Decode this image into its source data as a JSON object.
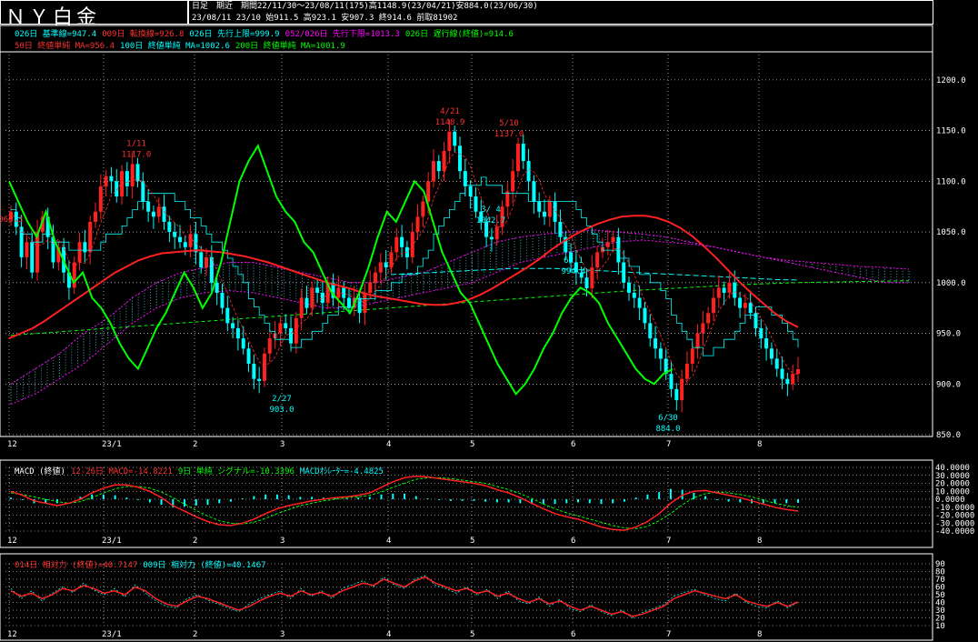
{
  "header": {
    "title": "ＮＹ白金",
    "line1": "日足　期近　期間22/11/30～23/08/11(175)高1148.9(23/04/21)安884.0(23/06/30)",
    "line2": "23/08/11 23/10 始911.5 高923.1 安907.3 終914.6 前取81902"
  },
  "legends": {
    "main1": [
      {
        "text": "026日 基準線=947.4",
        "color": "#00ffff"
      },
      {
        "text": "009日 転換線=926.8",
        "color": "#ff3030"
      },
      {
        "text": "026日 先行上限=999.9",
        "color": "#00ffff"
      },
      {
        "text": "052/026日 先行下限=1013.3",
        "color": "#ff00ff"
      },
      {
        "text": "026日 遅行線(終値)=914.6",
        "color": "#00ff00"
      }
    ],
    "main2": [
      {
        "text": "50日 終値単純 MA=956.4",
        "color": "#ff3030"
      },
      {
        "text": "100日 終値単純 MA=1002.6",
        "color": "#00ffff"
      },
      {
        "text": "200日 終値単純 MA=1001.9",
        "color": "#00ff00"
      }
    ],
    "macd": [
      {
        "text": "MACD (終値)",
        "color": "#ffffff"
      },
      {
        "text": "12-26日 MACD=-14.8221",
        "color": "#ff3030"
      },
      {
        "text": "9日 単純 シグナル=-10.3396",
        "color": "#00ff00"
      },
      {
        "text": "MACDｵｼﾚｰﾀｰ=-4.4825",
        "color": "#00ffff"
      }
    ],
    "rsi": [
      {
        "text": "014日 相対力 (終値)=40.7147",
        "color": "#ff3030"
      },
      {
        "text": "009日 相対力 (終値)=40.1467",
        "color": "#00ffff"
      }
    ]
  },
  "colors": {
    "up": "#ff2020",
    "down": "#00ffff",
    "grid": "#ffffff",
    "ma50": "#ff2020",
    "ma100": "#00ffff",
    "ma200": "#00ff00",
    "kumo_upper": "#00ffff",
    "kumo_lower": "#ff00ff",
    "chikou": "#00ff00",
    "base": "#00ffff",
    "conv": "#ff3030"
  },
  "chart_data": [
    {
      "type": "line",
      "title": "ＮＹ白金",
      "x_ticks": [
        "12",
        "23/1",
        "2",
        "3",
        "4",
        "5",
        "6",
        "7",
        "8"
      ],
      "ylim": [
        850,
        1225
      ],
      "y_ticks": [
        "1200.0",
        "1150.0",
        "1100.0",
        "1050.0",
        "1000.0",
        "950.0",
        "900.0",
        "850.0"
      ],
      "annotations": [
        {
          "text": "1/11",
          "value": 1117.0,
          "color": "#ff3030"
        },
        {
          "text": "1117.0",
          "value": 1117.0,
          "color": "#ff3030"
        },
        {
          "text": "4/21",
          "value": 1148.9,
          "color": "#ff3030"
        },
        {
          "text": "1148.9",
          "value": 1148.9,
          "color": "#ff3030"
        },
        {
          "text": "5/10",
          "value": 1137.0,
          "color": "#ff3030"
        },
        {
          "text": "1137.0",
          "value": 1137.0,
          "color": "#ff3030"
        },
        {
          "text": "2/27",
          "value": 903.0,
          "color": "#00ffff"
        },
        {
          "text": "903.0",
          "value": 903.0,
          "color": "#00ffff"
        },
        {
          "text": "6/30",
          "value": 884.0,
          "color": "#00ffff"
        },
        {
          "text": "884.0",
          "value": 884.0,
          "color": "#00ffff"
        },
        {
          "text": "3/ 4",
          "value": 1042.7,
          "color": "#00ffff"
        },
        {
          "text": "1042.7",
          "value": 1042.7,
          "color": "#00ffff"
        },
        {
          "text": "6/ 1",
          "value": 994.4,
          "color": "#00ffff"
        },
        {
          "text": "994.4",
          "value": 994.4,
          "color": "#00ffff"
        }
      ],
      "close": [
        1070,
        1055,
        1025,
        1040,
        1010,
        1050,
        1065,
        1045,
        1020,
        1035,
        1010,
        995,
        1020,
        1040,
        1030,
        1060,
        1070,
        1095,
        1105,
        1100,
        1085,
        1110,
        1095,
        1117,
        1100,
        1080,
        1070,
        1065,
        1075,
        1060,
        1050,
        1045,
        1040,
        1035,
        1048,
        1030,
        1015,
        1025,
        1000,
        990,
        975,
        960,
        955,
        945,
        935,
        920,
        905,
        903,
        930,
        945,
        950,
        960,
        955,
        940,
        965,
        985,
        975,
        995,
        990,
        980,
        1000,
        985,
        995,
        985,
        975,
        985,
        970,
        990,
        1000,
        1010,
        1020,
        1015,
        1030,
        1045,
        1035,
        1025,
        1050,
        1065,
        1080,
        1100,
        1120,
        1110,
        1130,
        1148.9,
        1135,
        1110,
        1095,
        1085,
        1070,
        1060,
        1045,
        1042.7,
        1055,
        1075,
        1090,
        1110,
        1137,
        1120,
        1100,
        1080,
        1070,
        1065,
        1080,
        1060,
        1045,
        1030,
        1020,
        1010,
        1005,
        994.4,
        1015,
        1030,
        1035,
        1040,
        1045,
        1020,
        1000,
        990,
        985,
        975,
        960,
        945,
        935,
        925,
        910,
        895,
        884,
        905,
        920,
        935,
        950,
        960,
        970,
        985,
        995,
        990,
        1000,
        985,
        975,
        980,
        970,
        955,
        945,
        935,
        925,
        915,
        905,
        900,
        910,
        914.6
      ],
      "ma50": [
        945,
        950,
        955,
        962,
        970,
        978,
        986,
        994,
        1002,
        1010,
        1016,
        1022,
        1026,
        1029,
        1030,
        1031,
        1032,
        1031,
        1030,
        1028,
        1026,
        1023,
        1020,
        1016,
        1012,
        1008,
        1004,
        1000,
        997,
        994,
        990,
        987,
        985,
        983,
        981,
        979,
        978,
        978,
        980,
        983,
        988,
        994,
        1001,
        1008,
        1015,
        1023,
        1032,
        1040,
        1047,
        1053,
        1058,
        1062,
        1065,
        1066,
        1066,
        1064,
        1060,
        1054,
        1046,
        1036,
        1025,
        1013,
        1001,
        990,
        980,
        970,
        962,
        956
      ],
      "ma100": [
        1008,
        1009,
        1010,
        1011,
        1012,
        1013,
        1014,
        1014,
        1014,
        1013,
        1012,
        1011,
        1010,
        1009,
        1008,
        1007,
        1006,
        1005,
        1004,
        1003,
        1002.6
      ],
      "ma200": [
        948,
        952,
        956,
        960,
        964,
        968,
        972,
        976,
        980,
        984,
        988,
        992,
        995,
        998,
        1000,
        1001,
        1001.9
      ],
      "chikou": [
        1100,
        1080,
        1060,
        1045,
        1070,
        1040,
        1020,
        1000,
        1010,
        985,
        975,
        960,
        940,
        925,
        915,
        935,
        955,
        970,
        990,
        1010,
        995,
        975,
        990,
        1020,
        1060,
        1100,
        1120,
        1135,
        1110,
        1085,
        1070,
        1060,
        1040,
        1030,
        1010,
        990,
        980,
        970,
        990,
        1015,
        1045,
        1070,
        1060,
        1080,
        1100,
        1090,
        1060,
        1030,
        1010,
        990,
        980,
        960,
        940,
        920,
        905,
        890,
        900,
        915,
        935,
        950,
        970,
        985,
        995,
        990,
        980,
        960,
        945,
        930,
        915,
        905,
        900,
        910,
        914.6
      ],
      "kumo_upper": [
        900,
        915,
        930,
        950,
        965,
        985,
        1000,
        1010,
        1015,
        1020,
        1020,
        1015,
        1010,
        1005,
        1000,
        1000,
        1005,
        1010,
        1020,
        1030,
        1040,
        1045,
        1048,
        1050,
        1052,
        1050,
        1048,
        1045,
        1040,
        1035,
        1030,
        1025,
        1020,
        1015,
        1010,
        1005,
        1000,
        999.9
      ],
      "kumo_lower": [
        880,
        890,
        905,
        920,
        940,
        960,
        975,
        985,
        990,
        992,
        990,
        985,
        980,
        975,
        975,
        980,
        985,
        990,
        995,
        1000,
        1010,
        1020,
        1025,
        1030,
        1035,
        1040,
        1042,
        1040,
        1038,
        1035,
        1030,
        1025,
        1022,
        1020,
        1018,
        1016,
        1015,
        1013.3
      ]
    },
    {
      "type": "line",
      "title": "MACD (終値)",
      "ylim": [
        -40,
        40
      ],
      "y_ticks": [
        "40.0000",
        "30.0000",
        "20.0000",
        "10.0000",
        "0.0000",
        "-10.0000",
        "-20.0000",
        "-30.0000",
        "-40.0000"
      ],
      "series": [
        {
          "name": "12-26日 MACD",
          "values": [
            10,
            5,
            -2,
            -5,
            -8,
            -5,
            0,
            8,
            14,
            18,
            18,
            15,
            10,
            2,
            -8,
            -15,
            -22,
            -28,
            -32,
            -33,
            -30,
            -25,
            -18,
            -12,
            -8,
            -5,
            -2,
            0,
            2,
            3,
            5,
            8,
            15,
            22,
            27,
            29,
            28,
            26,
            24,
            22,
            20,
            17,
            12,
            8,
            2,
            -5,
            -12,
            -18,
            -22,
            -25,
            -30,
            -35,
            -38,
            -39,
            -35,
            -28,
            -18,
            -5,
            5,
            10,
            11,
            8,
            5,
            2,
            -2,
            -6,
            -10,
            -13,
            -14.8
          ]
        },
        {
          "name": "9日 単純 シグナル",
          "values": [
            8,
            6,
            3,
            0,
            -3,
            -5,
            -3,
            2,
            8,
            13,
            16,
            16,
            14,
            9,
            2,
            -6,
            -14,
            -21,
            -27,
            -30,
            -31,
            -29,
            -24,
            -18,
            -13,
            -8,
            -5,
            -2,
            0,
            2,
            3,
            5,
            9,
            15,
            20,
            25,
            27,
            27,
            26,
            24,
            22,
            20,
            16,
            12,
            7,
            1,
            -6,
            -12,
            -17,
            -21,
            -25,
            -29,
            -33,
            -36,
            -37,
            -34,
            -27,
            -18,
            -7,
            2,
            7,
            9,
            8,
            6,
            3,
            -1,
            -5,
            -8,
            -10.3
          ]
        },
        {
          "name": "MACDｵｼﾚｰﾀｰ",
          "values": [
            2,
            -1,
            -5,
            -5,
            -5,
            0,
            3,
            6,
            6,
            5,
            2,
            -1,
            -4,
            -7,
            -10,
            -9,
            -8,
            -7,
            -5,
            -3,
            1,
            4,
            6,
            6,
            5,
            3,
            3,
            2,
            2,
            1,
            2,
            3,
            6,
            7,
            7,
            4,
            1,
            -1,
            -2,
            -2,
            -2,
            -3,
            -4,
            -4,
            -5,
            -6,
            -6,
            -6,
            -5,
            -4,
            -5,
            -6,
            -5,
            -3,
            2,
            6,
            9,
            13,
            12,
            8,
            4,
            -1,
            -3,
            -4,
            -5,
            -5,
            -5,
            -5,
            -4.5
          ]
        }
      ]
    },
    {
      "type": "line",
      "title": "相対力",
      "ylim": [
        10,
        90
      ],
      "y_ticks": [
        "90",
        "80",
        "70",
        "60",
        "50",
        "40",
        "30",
        "20",
        "10"
      ],
      "series": [
        {
          "name": "014日 相対力 (終値)",
          "values": [
            55,
            48,
            52,
            45,
            50,
            58,
            55,
            62,
            58,
            52,
            55,
            50,
            60,
            55,
            45,
            38,
            35,
            42,
            48,
            45,
            40,
            35,
            30,
            35,
            42,
            48,
            52,
            48,
            55,
            50,
            53,
            48,
            55,
            60,
            65,
            62,
            70,
            65,
            60,
            68,
            73,
            65,
            60,
            55,
            58,
            52,
            55,
            48,
            52,
            45,
            40,
            45,
            38,
            42,
            35,
            30,
            35,
            30,
            25,
            28,
            22,
            25,
            30,
            35,
            45,
            50,
            55,
            52,
            48,
            45,
            50,
            42,
            38,
            35,
            40,
            35,
            40.7
          ]
        },
        {
          "name": "009日 相対力 (終値)",
          "values": [
            58,
            45,
            55,
            42,
            52,
            60,
            53,
            65,
            56,
            50,
            58,
            47,
            63,
            52,
            42,
            35,
            33,
            45,
            50,
            43,
            38,
            33,
            28,
            38,
            45,
            50,
            55,
            45,
            58,
            48,
            55,
            45,
            58,
            63,
            68,
            60,
            73,
            63,
            58,
            70,
            75,
            62,
            58,
            52,
            60,
            50,
            57,
            45,
            55,
            42,
            38,
            47,
            35,
            44,
            32,
            28,
            37,
            28,
            23,
            30,
            20,
            27,
            32,
            37,
            48,
            53,
            57,
            50,
            45,
            42,
            52,
            40,
            35,
            33,
            42,
            33,
            40.1
          ]
        }
      ]
    }
  ]
}
